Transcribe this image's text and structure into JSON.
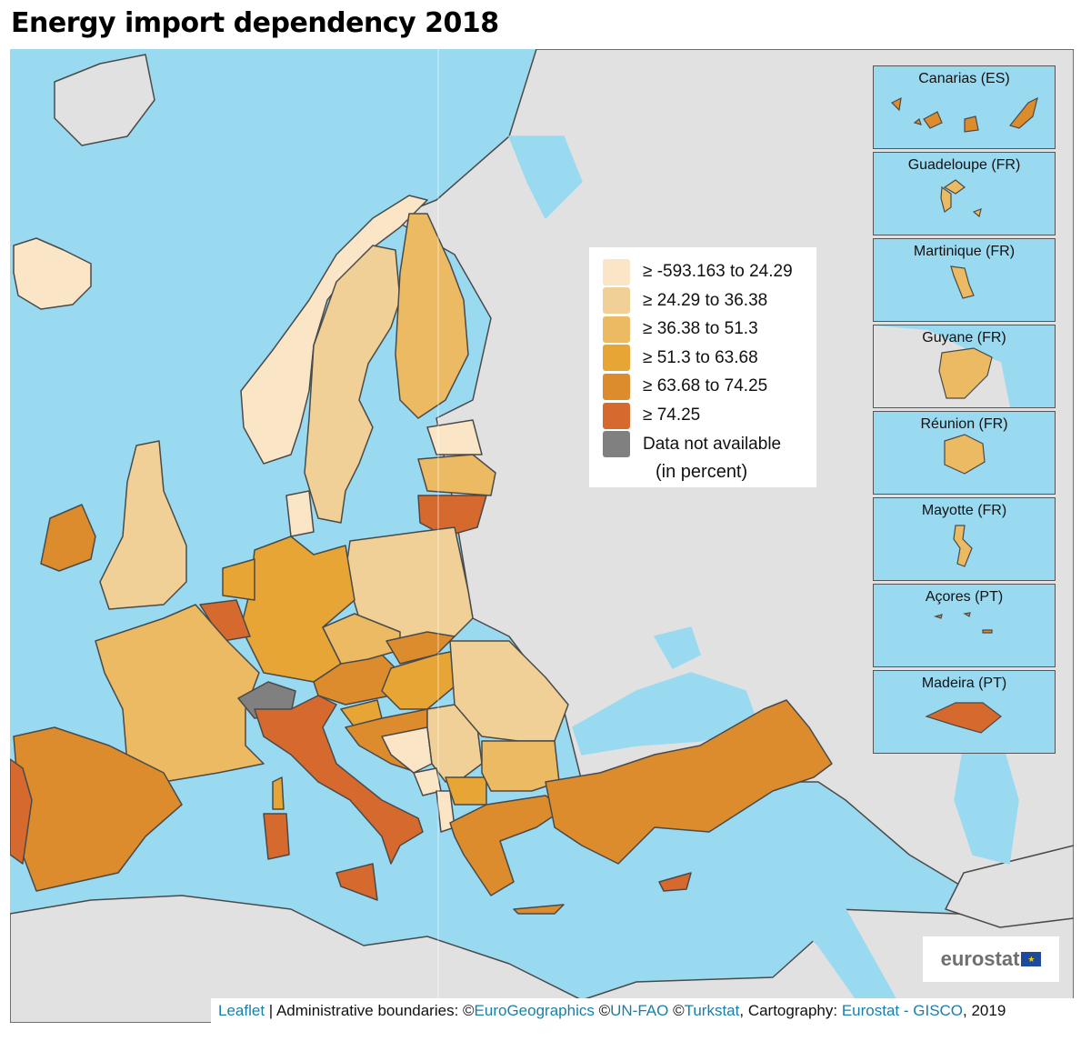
{
  "title": "Energy import dependency 2018",
  "colors": {
    "sea": "#99daf1",
    "land": "#e1e1e1",
    "border": "#4a4a4a"
  },
  "legend": {
    "items": [
      {
        "label": "≥ -593.163 to 24.29",
        "color": "#fae6c6"
      },
      {
        "label": "≥ 24.29 to 36.38",
        "color": "#f0d096"
      },
      {
        "label": "≥ 36.38 to 51.3",
        "color": "#ebba63"
      },
      {
        "label": "≥ 51.3 to 63.68",
        "color": "#e6a534"
      },
      {
        "label": "≥ 63.68 to 74.25",
        "color": "#dc8b2d"
      },
      {
        "label": "≥ 74.25",
        "color": "#d6692e"
      },
      {
        "label": "Data not available",
        "color": "#808080"
      }
    ],
    "note": "(in percent)"
  },
  "regions": {
    "IS": 0,
    "NO": 0,
    "SE": 1,
    "FI": 2,
    "EE": 0,
    "LV": 2,
    "LT": 5,
    "PL": 1,
    "DE": 3,
    "DK": 0,
    "NL": 3,
    "BE": 5,
    "FR": 2,
    "UK": 1,
    "IE": 4,
    "ES": 4,
    "PT": 5,
    "CH": 6,
    "IT": 5,
    "SICILY": 5,
    "SARDINIA": 5,
    "CORSICA": 3,
    "AT": 4,
    "CZ": 2,
    "SK": 4,
    "HU": 3,
    "SI": 3,
    "HR": 4,
    "BA": 0,
    "RS": 1,
    "ME": 0,
    "AL": 0,
    "MK": 3,
    "RO": 1,
    "BG": 2,
    "EL": 4,
    "CRETE": 4,
    "TR": 4,
    "CY": 5
  },
  "insets": [
    {
      "label": "Canarias (ES)",
      "class": 4
    },
    {
      "label": "Guadeloupe (FR)",
      "class": 2
    },
    {
      "label": "Martinique (FR)",
      "class": 2
    },
    {
      "label": "Guyane (FR)",
      "class": 2
    },
    {
      "label": "Réunion (FR)",
      "class": 2
    },
    {
      "label": "Mayotte (FR)",
      "class": 2
    },
    {
      "label": "Açores (PT)",
      "class": 4
    },
    {
      "label": "Madeira (PT)",
      "class": 5
    }
  ],
  "logo": {
    "text": "eurostat"
  },
  "attribution": {
    "leaflet": "Leaflet",
    "sep": " | Administrative boundaries: ©",
    "eurogeographics": "EuroGeographics",
    "copy1": " ©",
    "unfao": "UN-FAO",
    "copy2": " ©",
    "turkstat": "Turkstat",
    "carto": ", Cartography: ",
    "gisco": "Eurostat - GISCO",
    "year": ", 2019"
  }
}
